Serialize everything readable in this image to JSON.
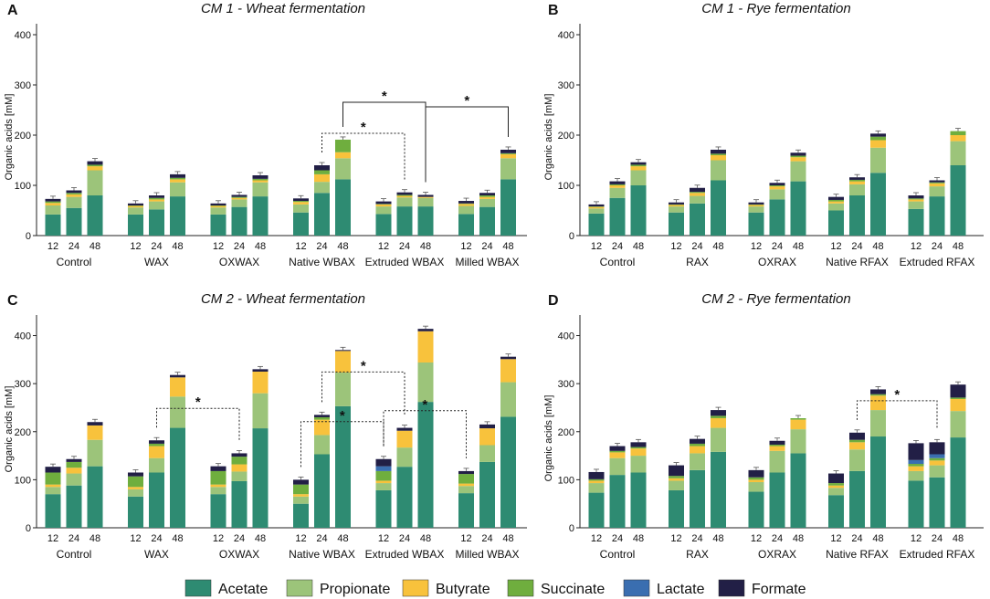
{
  "series_colors": {
    "Acetate": "#2e8b72",
    "Propionate": "#9cc47a",
    "Butyrate": "#f8c23c",
    "Succinate": "#6fae3e",
    "Lactate": "#3a6eb0",
    "Formate": "#221f46"
  },
  "legend": [
    "Acetate",
    "Propionate",
    "Butyrate",
    "Succinate",
    "Lactate",
    "Formate"
  ],
  "chart_data": [
    {
      "type": "bar",
      "stacked": true,
      "letter": "A",
      "title": "CM 1 - Wheat fermentation",
      "ylabel": "Organic acids [mM]",
      "ylim": [
        0,
        400
      ],
      "yticks": [
        0,
        100,
        200,
        300,
        400
      ],
      "groups": [
        "Control",
        "WAX",
        "OXWAX",
        "Native WBAX",
        "Extruded WBAX",
        "Milled WBAX"
      ],
      "timepoints": [
        "12",
        "24",
        "48"
      ],
      "series_names": [
        "Acetate",
        "Propionate",
        "Butyrate",
        "Succinate",
        "Lactate",
        "Formate"
      ],
      "values": [
        [
          [
            42,
            18,
            5,
            3,
            0,
            5
          ],
          [
            55,
            22,
            5,
            3,
            0,
            5
          ],
          [
            80,
            50,
            8,
            3,
            0,
            7
          ]
        ],
        [
          [
            42,
            14,
            3,
            1,
            0,
            4
          ],
          [
            52,
            16,
            4,
            3,
            0,
            5
          ],
          [
            78,
            28,
            6,
            3,
            0,
            7
          ]
        ],
        [
          [
            42,
            14,
            3,
            1,
            0,
            4
          ],
          [
            57,
            15,
            3,
            2,
            0,
            4
          ],
          [
            78,
            28,
            4,
            3,
            0,
            7
          ]
        ],
        [
          [
            46,
            16,
            5,
            2,
            0,
            5
          ],
          [
            85,
            22,
            15,
            8,
            0,
            10
          ],
          [
            112,
            42,
            12,
            25,
            0,
            0
          ]
        ],
        [
          [
            43,
            15,
            4,
            1,
            0,
            5
          ],
          [
            58,
            18,
            3,
            2,
            0,
            5
          ],
          [
            58,
            17,
            2,
            0,
            0,
            4
          ]
        ],
        [
          [
            43,
            16,
            4,
            1,
            0,
            5
          ],
          [
            57,
            16,
            4,
            3,
            0,
            5
          ],
          [
            112,
            42,
            8,
            2,
            0,
            7
          ]
        ]
      ],
      "annotations": [
        {
          "label": "*",
          "from": [
            3,
            1
          ],
          "to": [
            4,
            1
          ],
          "style": "dotted"
        },
        {
          "label": "*",
          "from": [
            3,
            2
          ],
          "to": [
            4,
            2
          ],
          "style": "solid"
        },
        {
          "label": "*",
          "from": [
            4,
            2
          ],
          "to": [
            5,
            2
          ],
          "style": "solid"
        }
      ]
    },
    {
      "type": "bar",
      "stacked": true,
      "letter": "B",
      "title": "CM 1 - Rye fermentation",
      "ylabel": "Organic acids [mM]",
      "ylim": [
        0,
        400
      ],
      "yticks": [
        0,
        100,
        200,
        300,
        400
      ],
      "groups": [
        "Control",
        "RAX",
        "OXRAX",
        "Native RFAX",
        "Extruded RFAX"
      ],
      "timepoints": [
        "12",
        "24",
        "48"
      ],
      "series_names": [
        "Acetate",
        "Propionate",
        "Butyrate",
        "Succinate",
        "Lactate",
        "Formate"
      ],
      "values": [
        [
          [
            44,
            10,
            3,
            1,
            0,
            4
          ],
          [
            75,
            20,
            5,
            2,
            0,
            6
          ],
          [
            100,
            30,
            8,
            3,
            0,
            5
          ]
        ],
        [
          [
            46,
            12,
            3,
            1,
            0,
            4
          ],
          [
            64,
            15,
            6,
            2,
            0,
            8
          ],
          [
            110,
            40,
            10,
            3,
            0,
            8
          ]
        ],
        [
          [
            46,
            12,
            3,
            1,
            0,
            4
          ],
          [
            72,
            20,
            6,
            2,
            0,
            5
          ],
          [
            108,
            40,
            8,
            3,
            0,
            6
          ]
        ],
        [
          [
            50,
            14,
            4,
            3,
            0,
            6
          ],
          [
            80,
            22,
            6,
            3,
            0,
            5
          ],
          [
            125,
            50,
            15,
            7,
            0,
            6
          ]
        ],
        [
          [
            53,
            15,
            4,
            2,
            0,
            6
          ],
          [
            78,
            20,
            6,
            2,
            0,
            4
          ],
          [
            140,
            48,
            12,
            8,
            0,
            0
          ]
        ]
      ],
      "annotations": []
    },
    {
      "type": "bar",
      "stacked": true,
      "letter": "C",
      "title": "CM 2 - Wheat fermentation",
      "ylabel": "Organic acids [mM]",
      "ylim": [
        0,
        420
      ],
      "yticks": [
        0,
        100,
        200,
        300,
        400
      ],
      "groups": [
        "Control",
        "WAX",
        "OXWAX",
        "Native WBAX",
        "Extruded WBAX",
        "Milled WBAX"
      ],
      "timepoints": [
        "12",
        "24",
        "48"
      ],
      "series_names": [
        "Acetate",
        "Propionate",
        "Butyrate",
        "Succinate",
        "Lactate",
        "Formate"
      ],
      "values": [
        [
          [
            70,
            15,
            5,
            25,
            0,
            12
          ],
          [
            88,
            25,
            12,
            12,
            0,
            6
          ],
          [
            128,
            55,
            30,
            0,
            0,
            7
          ]
        ],
        [
          [
            65,
            15,
            5,
            22,
            0,
            8
          ],
          [
            115,
            30,
            25,
            5,
            0,
            7
          ],
          [
            208,
            65,
            40,
            0,
            0,
            5
          ]
        ],
        [
          [
            70,
            15,
            5,
            28,
            0,
            10
          ],
          [
            97,
            20,
            15,
            16,
            0,
            7
          ],
          [
            207,
            73,
            45,
            0,
            0,
            5
          ]
        ],
        [
          [
            50,
            15,
            5,
            20,
            0,
            10
          ],
          [
            153,
            40,
            32,
            5,
            0,
            5
          ],
          [
            253,
            70,
            45,
            0,
            0,
            2
          ]
        ],
        [
          [
            78,
            15,
            5,
            20,
            10,
            15
          ],
          [
            127,
            40,
            35,
            0,
            0,
            6
          ],
          [
            262,
            82,
            65,
            0,
            0,
            5
          ]
        ],
        [
          [
            72,
            15,
            5,
            20,
            0,
            6
          ],
          [
            137,
            35,
            35,
            0,
            0,
            8
          ],
          [
            231,
            72,
            48,
            0,
            0,
            5
          ]
        ]
      ],
      "annotations": [
        {
          "label": "*",
          "from": [
            1,
            1
          ],
          "to": [
            2,
            1
          ],
          "style": "dotted"
        },
        {
          "label": "*",
          "from": [
            3,
            0
          ],
          "to": [
            4,
            0
          ],
          "style": "dotted"
        },
        {
          "label": "*",
          "from": [
            3,
            1
          ],
          "to": [
            4,
            1
          ],
          "style": "dotted"
        },
        {
          "label": "*",
          "from": [
            4,
            0
          ],
          "to": [
            5,
            0
          ],
          "style": "dotted"
        }
      ]
    },
    {
      "type": "bar",
      "stacked": true,
      "letter": "D",
      "title": "CM 2 - Rye fermentation",
      "ylabel": "Organic acids [mM]",
      "ylim": [
        0,
        420
      ],
      "yticks": [
        0,
        100,
        200,
        300,
        400
      ],
      "groups": [
        "Control",
        "RAX",
        "OXRAX",
        "Native RFAX",
        "Extruded RFAX"
      ],
      "timepoints": [
        "12",
        "24",
        "48"
      ],
      "series_names": [
        "Acetate",
        "Propionate",
        "Butyrate",
        "Succinate",
        "Lactate",
        "Formate"
      ],
      "values": [
        [
          [
            73,
            20,
            5,
            3,
            0,
            15
          ],
          [
            110,
            35,
            12,
            3,
            0,
            10
          ],
          [
            115,
            35,
            15,
            3,
            0,
            10
          ]
        ],
        [
          [
            78,
            20,
            5,
            5,
            0,
            22
          ],
          [
            120,
            35,
            15,
            5,
            0,
            10
          ],
          [
            158,
            50,
            20,
            5,
            0,
            12
          ]
        ],
        [
          [
            75,
            20,
            5,
            5,
            0,
            15
          ],
          [
            115,
            45,
            10,
            3,
            0,
            8
          ],
          [
            155,
            50,
            20,
            3,
            0,
            0
          ]
        ],
        [
          [
            68,
            15,
            5,
            5,
            0,
            20
          ],
          [
            118,
            45,
            15,
            5,
            0,
            15
          ],
          [
            190,
            55,
            30,
            3,
            0,
            10
          ]
        ],
        [
          [
            98,
            20,
            10,
            5,
            8,
            35
          ],
          [
            105,
            25,
            10,
            5,
            8,
            25
          ],
          [
            188,
            55,
            25,
            3,
            0,
            27
          ]
        ]
      ],
      "annotations": [
        {
          "label": "*",
          "from": [
            3,
            1
          ],
          "to": [
            4,
            1
          ],
          "style": "dotted"
        }
      ]
    }
  ]
}
